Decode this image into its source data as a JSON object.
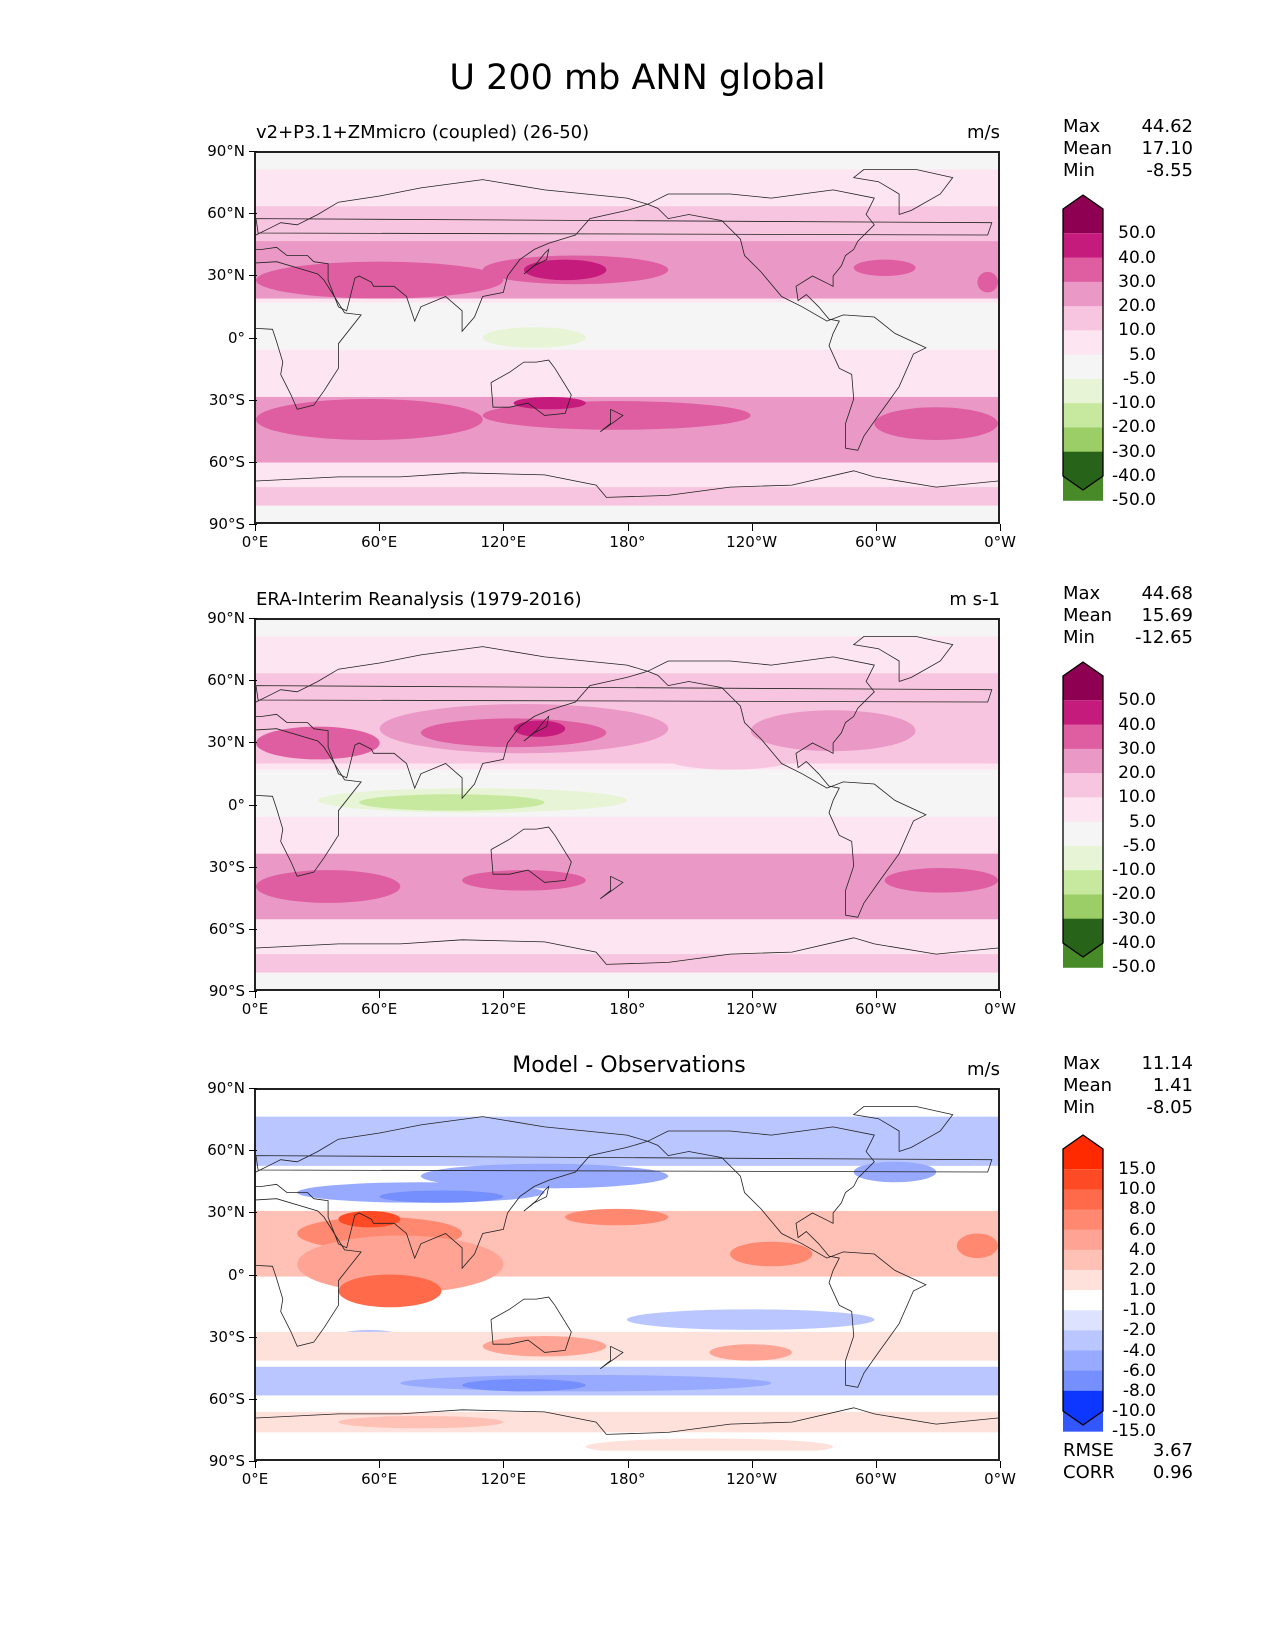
{
  "figure": {
    "title": "U 200 mb ANN global"
  },
  "chart_data": [
    {
      "type": "heatmap",
      "panel": "test",
      "title": "v2+P3.1+ZMmicro (coupled) (26-50)",
      "units": "m/s",
      "xlabel": "",
      "ylabel": "",
      "x_tick_labels": [
        "0°E",
        "60°E",
        "120°E",
        "180°",
        "120°W",
        "60°W",
        "0°W"
      ],
      "y_tick_labels": [
        "90°N",
        "60°N",
        "30°N",
        "0°",
        "30°S",
        "60°S",
        "90°S"
      ],
      "xlim": [
        0,
        360
      ],
      "ylim": [
        -90,
        90
      ],
      "stats": {
        "max": "44.62",
        "mean": "17.10",
        "min": "-8.55"
      },
      "colorbar": {
        "levels": [
          "50.0",
          "40.0",
          "30.0",
          "20.0",
          "10.0",
          "5.0",
          "-5.0",
          "-10.0",
          "-20.0",
          "-30.0",
          "-40.0",
          "-50.0"
        ],
        "colors": [
          "#8e0152",
          "#c51b7d",
          "#de5ea1",
          "#ea99c7",
          "#f7c5e0",
          "#fde6f1",
          "#f5f5f5",
          "#e7f5d6",
          "#c7e99f",
          "#9bce66",
          "#6eac3a",
          "#478a27",
          "#276419"
        ],
        "extend": "both"
      },
      "features": [
        {
          "desc": "NH subtropical jet core",
          "lon": 145,
          "lat": 32,
          "value_range": "40-50"
        },
        {
          "desc": "SH jet band",
          "lat": -42,
          "value_range": "30-40"
        },
        {
          "desc": "Maritime continent easterlies",
          "lon": 110,
          "lat": 0,
          "value_range": "-10 to -5"
        }
      ]
    },
    {
      "type": "heatmap",
      "panel": "reference",
      "title": "ERA-Interim Reanalysis (1979-2016)",
      "units": "m s-1",
      "xlabel": "",
      "ylabel": "",
      "x_tick_labels": [
        "0°E",
        "60°E",
        "120°E",
        "180°",
        "120°W",
        "60°W",
        "0°W"
      ],
      "y_tick_labels": [
        "90°N",
        "60°N",
        "30°N",
        "0°",
        "30°S",
        "60°S",
        "90°S"
      ],
      "xlim": [
        0,
        360
      ],
      "ylim": [
        -90,
        90
      ],
      "stats": {
        "max": "44.68",
        "mean": "15.69",
        "min": "-12.65"
      },
      "colorbar": {
        "levels": [
          "50.0",
          "40.0",
          "30.0",
          "20.0",
          "10.0",
          "5.0",
          "-5.0",
          "-10.0",
          "-20.0",
          "-30.0",
          "-40.0",
          "-50.0"
        ],
        "colors": [
          "#8e0152",
          "#c51b7d",
          "#de5ea1",
          "#ea99c7",
          "#f7c5e0",
          "#fde6f1",
          "#f5f5f5",
          "#e7f5d6",
          "#c7e99f",
          "#9bce66",
          "#6eac3a",
          "#478a27",
          "#276419"
        ],
        "extend": "both"
      },
      "features": [
        {
          "desc": "NH subtropical jet core",
          "lon": 140,
          "lat": 35,
          "value_range": "40-50"
        },
        {
          "desc": "SH jet band",
          "lat": -40,
          "value_range": "30-40"
        },
        {
          "desc": "Indian Ocean / Maritime continent easterlies",
          "lon": 85,
          "lat": 0,
          "value_range": "-20 to -10"
        }
      ]
    },
    {
      "type": "heatmap",
      "panel": "difference",
      "title": "Model - Observations",
      "units": "m/s",
      "xlabel": "",
      "ylabel": "",
      "x_tick_labels": [
        "0°E",
        "60°E",
        "120°E",
        "180°",
        "120°W",
        "60°W",
        "0°W"
      ],
      "y_tick_labels": [
        "90°N",
        "60°N",
        "30°N",
        "0°",
        "30°S",
        "60°S",
        "90°S"
      ],
      "xlim": [
        0,
        360
      ],
      "ylim": [
        -90,
        90
      ],
      "stats": {
        "max": "11.14",
        "mean": "1.41",
        "min": "-8.05"
      },
      "metrics": {
        "rmse_label": "RMSE",
        "rmse": "3.67",
        "corr_label": "CORR",
        "corr": "0.96"
      },
      "colorbar": {
        "levels": [
          "15.0",
          "10.0",
          "8.0",
          "6.0",
          "4.0",
          "2.0",
          "1.0",
          "-1.0",
          "-2.0",
          "-4.0",
          "-6.0",
          "-8.0",
          "-10.0",
          "-15.0"
        ],
        "colors": [
          "#ff2a00",
          "#ff4b25",
          "#ff6a4a",
          "#ff8870",
          "#ffa494",
          "#ffc0b5",
          "#ffe1db",
          "#ffffff",
          "#dde3ff",
          "#b9c6ff",
          "#97aaff",
          "#768fff",
          "#5573ff",
          "#3257ff",
          "#0d36ff"
        ],
        "extend": "both"
      },
      "features": [
        {
          "desc": "Positive bias tropics Indian Ocean",
          "lon": 65,
          "lat": -10,
          "value_range": "6-10"
        },
        {
          "desc": "Negative bias ~50S",
          "lat": -52,
          "value_range": "-6 to -4"
        },
        {
          "desc": "Negative bias ~40N",
          "lat": 42,
          "value_range": "-4 to -2"
        }
      ]
    }
  ],
  "stat_labels": {
    "max": "Max",
    "mean": "Mean",
    "min": "Min"
  }
}
